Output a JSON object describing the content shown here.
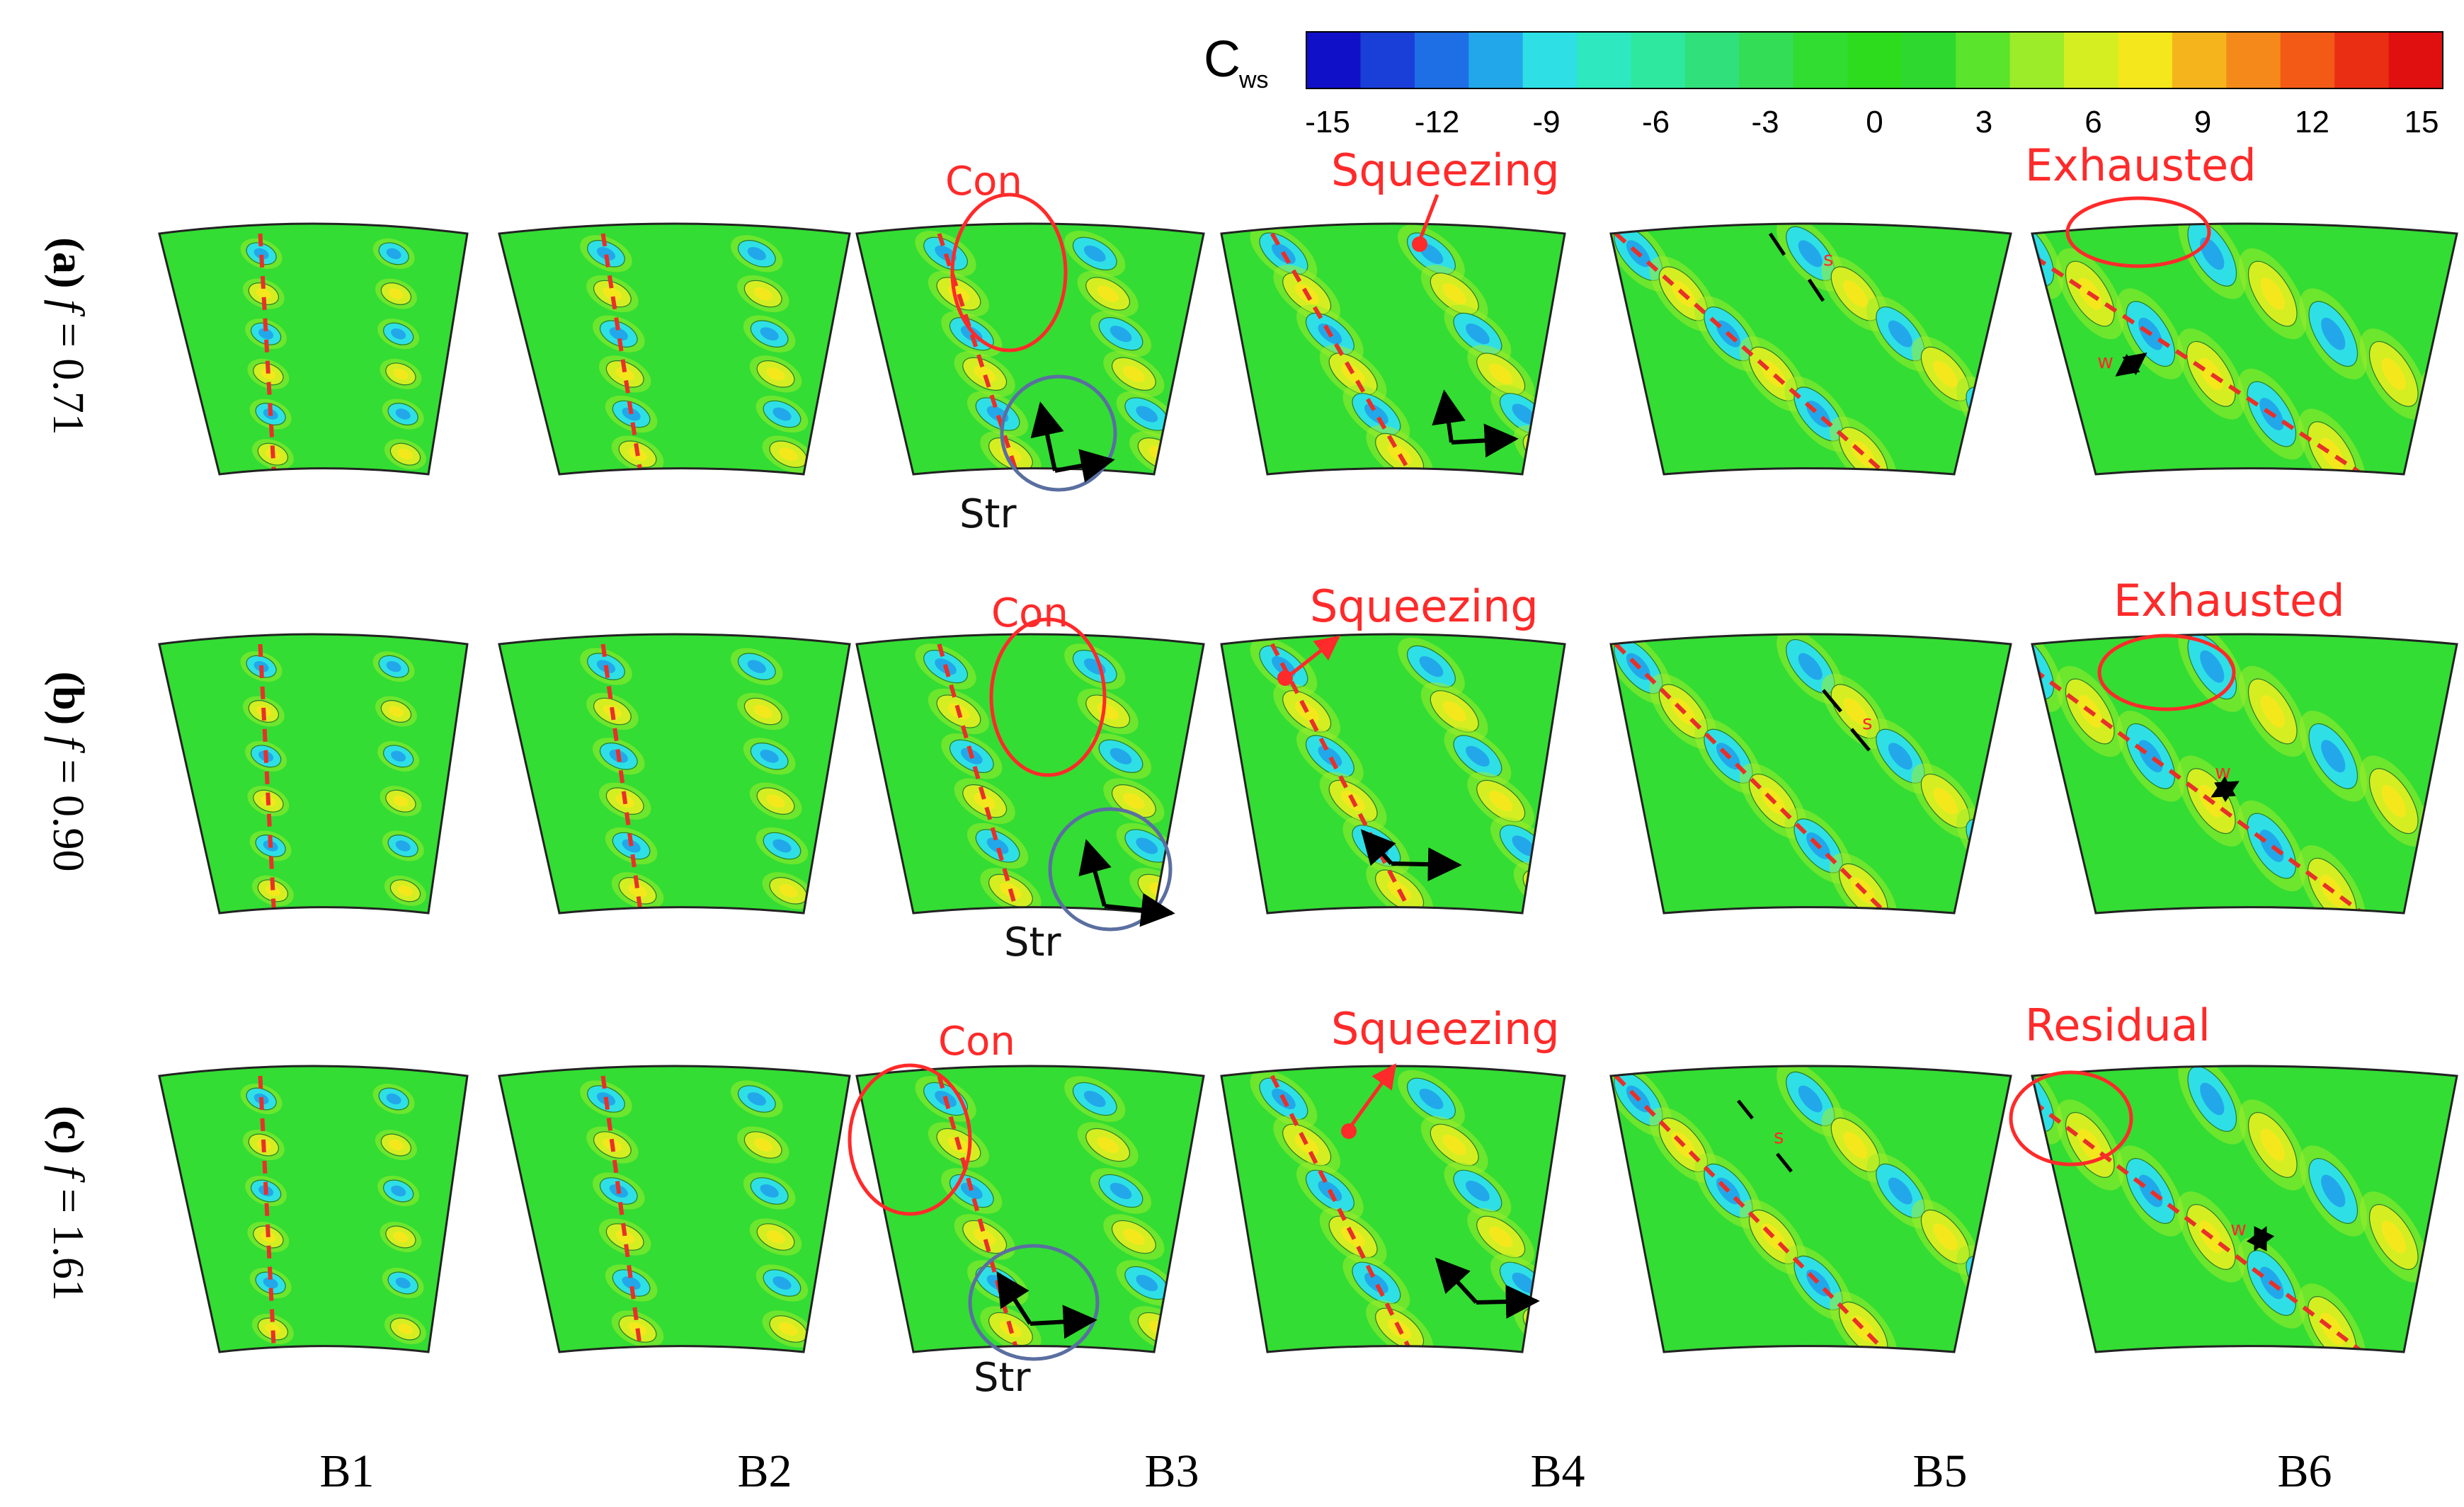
{
  "colorbar": {
    "symbol": "C",
    "subscript": "ws",
    "ticks": [
      "-15",
      "-12",
      "-9",
      "-6",
      "-3",
      "0",
      "3",
      "6",
      "9",
      "12",
      "15"
    ],
    "colors": [
      "#1010c8",
      "#1a3ed8",
      "#1e6ee6",
      "#22a8ea",
      "#2ee0e6",
      "#2ee8c0",
      "#2ee8a0",
      "#30e07a",
      "#33dd55",
      "#30dd30",
      "#2edc1e",
      "#2ed82e",
      "#5ae42c",
      "#9cec2a",
      "#d4ee22",
      "#f4e81c",
      "#f5b41c",
      "#f58a1a",
      "#f25a16",
      "#ea2e14",
      "#e01010"
    ]
  },
  "rows": [
    {
      "tag": "(a)",
      "var": "f",
      "value": "= 0.71"
    },
    {
      "tag": "(b)",
      "var": "f",
      "value": "= 0.90"
    },
    {
      "tag": "(c)",
      "var": "f",
      "value": "= 1.61"
    }
  ],
  "columns": [
    "B1",
    "B2",
    "B3",
    "B4",
    "B5",
    "B6"
  ],
  "annotations": {
    "con": "Con",
    "str": "Str",
    "squeezing": "Squeezing",
    "exhausted": "Exhausted",
    "residual": "Residual",
    "s": "s",
    "w": "w"
  },
  "palette": {
    "field": "#33dd33",
    "annotation_red": "#ff2a2a",
    "annotation_blue": "#5a6fa0",
    "dash": "#e8302a"
  }
}
